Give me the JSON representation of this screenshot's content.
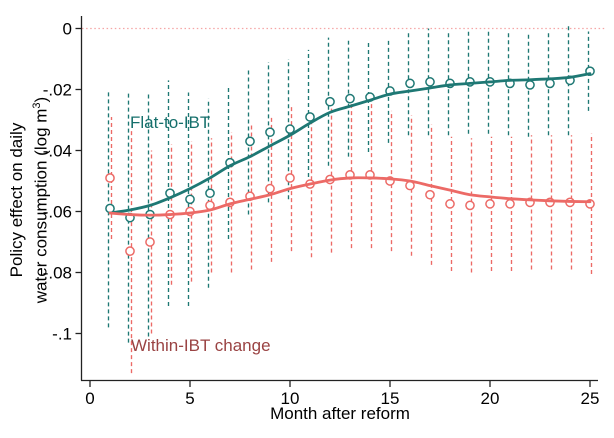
{
  "figure": {
    "ylabel_line1": "Policy effect on daily",
    "ylabel_line2_prefix": "water consumption (log m",
    "ylabel_sup": "3",
    "ylabel_suffix": ")",
    "xlabel": "Month after reform"
  },
  "chart_data": {
    "type": "scatter",
    "subtype": "event-study: point estimates with dashed 95% CI whiskers and smoothed trend lines",
    "title": "",
    "xlabel": "Month after reform",
    "ylabel": "Policy effect on daily water consumption (log m3)",
    "xlim": [
      -0.5,
      25.8
    ],
    "ylim": [
      -0.115,
      0.004
    ],
    "xticks": [
      0,
      5,
      10,
      15,
      20,
      25
    ],
    "xtick_labels": [
      "0",
      "5",
      "10",
      "15",
      "20",
      "25"
    ],
    "yticks": [
      0,
      -0.02,
      -0.04,
      -0.06,
      -0.08,
      -0.1
    ],
    "ytick_labels": [
      "0",
      "-.02",
      "-.04",
      "-.06",
      "-.08",
      "-.1"
    ],
    "grid": "off",
    "legend": "inline text labels next to each series",
    "zero_reference_line": {
      "y": 0,
      "style": "dotted",
      "color": "#f5a5a5"
    },
    "axis_color": "#222222",
    "months": [
      1,
      2,
      3,
      4,
      5,
      6,
      7,
      8,
      9,
      10,
      11,
      12,
      13,
      14,
      15,
      16,
      17,
      18,
      19,
      20,
      21,
      22,
      23,
      24,
      25
    ],
    "series": [
      {
        "name": "Flat-to-IBT",
        "marker": "hollow circle",
        "marker_color": "#1e7874",
        "line_color": "#1e7874",
        "ci_style": "dashed vertical whiskers",
        "values": [
          -0.059,
          -0.062,
          -0.061,
          -0.054,
          -0.056,
          -0.054,
          -0.044,
          -0.037,
          -0.034,
          -0.033,
          -0.029,
          -0.024,
          -0.023,
          -0.0225,
          -0.0205,
          -0.018,
          -0.0175,
          -0.018,
          -0.0175,
          -0.0175,
          -0.018,
          -0.0185,
          -0.018,
          -0.017,
          -0.014
        ],
        "ci_low": [
          -0.098,
          -0.103,
          -0.101,
          -0.091,
          -0.091,
          -0.085,
          -0.069,
          -0.061,
          -0.057,
          -0.056,
          -0.051,
          -0.045,
          -0.042,
          -0.0405,
          -0.0375,
          -0.035,
          -0.035,
          -0.035,
          -0.0345,
          -0.0345,
          -0.035,
          -0.0355,
          -0.035,
          -0.035,
          -0.027
        ],
        "ci_high": [
          -0.02,
          -0.021,
          -0.021,
          -0.017,
          -0.021,
          -0.023,
          -0.019,
          -0.013,
          -0.011,
          -0.01,
          -0.007,
          -0.003,
          -0.004,
          -0.0045,
          -0.0035,
          -0.001,
          0.0,
          -0.001,
          -0.0005,
          -0.0005,
          -0.001,
          -0.0015,
          -0.001,
          0.001,
          -0.001
        ],
        "trend": [
          -0.0605,
          -0.0595,
          -0.058,
          -0.0555,
          -0.0525,
          -0.049,
          -0.045,
          -0.042,
          -0.0385,
          -0.035,
          -0.031,
          -0.0275,
          -0.0255,
          -0.0235,
          -0.0215,
          -0.0205,
          -0.0195,
          -0.0185,
          -0.018,
          -0.0175,
          -0.017,
          -0.0168,
          -0.0165,
          -0.016,
          -0.0148
        ]
      },
      {
        "name": "Within-IBT change",
        "marker": "hollow circle",
        "marker_color": "#ec6a66",
        "line_color": "#ec6a66",
        "ci_style": "dashed vertical whiskers",
        "values": [
          -0.049,
          -0.073,
          -0.07,
          -0.061,
          -0.06,
          -0.058,
          -0.057,
          -0.055,
          -0.0525,
          -0.049,
          -0.051,
          -0.0495,
          -0.048,
          -0.048,
          -0.05,
          -0.0515,
          -0.0545,
          -0.0575,
          -0.058,
          -0.0575,
          -0.0575,
          -0.057,
          -0.057,
          -0.057,
          -0.0575
        ],
        "ci_low": [
          -0.069,
          -0.113,
          -0.1,
          -0.084,
          -0.083,
          -0.08,
          -0.08,
          -0.079,
          -0.0765,
          -0.073,
          -0.075,
          -0.0735,
          -0.072,
          -0.072,
          -0.073,
          -0.0745,
          -0.0775,
          -0.0795,
          -0.08,
          -0.0795,
          -0.0795,
          -0.079,
          -0.079,
          -0.079,
          -0.0805
        ],
        "ci_high": [
          -0.029,
          -0.033,
          -0.04,
          -0.038,
          -0.037,
          -0.036,
          -0.034,
          -0.031,
          -0.0285,
          -0.025,
          -0.027,
          -0.0255,
          -0.024,
          -0.024,
          -0.027,
          -0.0285,
          -0.0315,
          -0.0355,
          -0.036,
          -0.0355,
          -0.0355,
          -0.035,
          -0.035,
          -0.035,
          -0.0345
        ],
        "trend": [
          -0.0605,
          -0.061,
          -0.0612,
          -0.061,
          -0.0605,
          -0.0595,
          -0.0575,
          -0.056,
          -0.0545,
          -0.0525,
          -0.051,
          -0.0497,
          -0.049,
          -0.049,
          -0.0493,
          -0.05,
          -0.0515,
          -0.053,
          -0.0545,
          -0.0552,
          -0.0558,
          -0.0562,
          -0.0565,
          -0.0567,
          -0.0568
        ]
      }
    ]
  }
}
